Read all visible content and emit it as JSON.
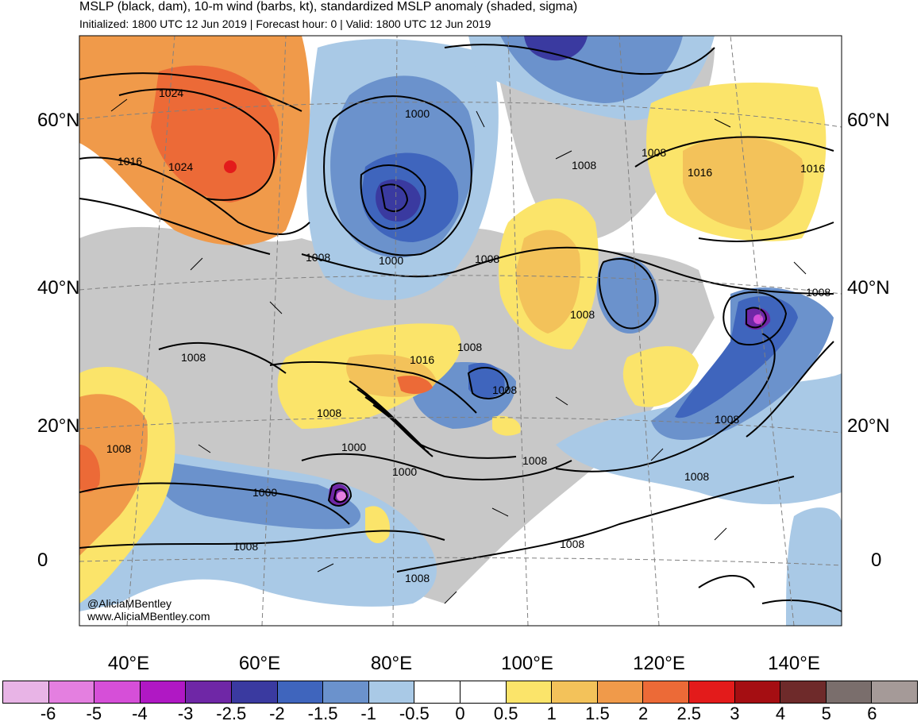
{
  "title": {
    "line1": "MSLP (black, dam), 10-m wind (barbs, kt), standardized MSLP anomaly (shaded, sigma)",
    "line2": "Initialized: 1800 UTC 12 Jun 2019 | Forecast hour: 0 | Valid: 1800 UTC 12 Jun 2019"
  },
  "lat_labels": [
    "60°N",
    "40°N",
    "20°N",
    "0"
  ],
  "lon_labels": [
    "40°E",
    "60°E",
    "80°E",
    "100°E",
    "120°E",
    "140°E"
  ],
  "contour_labels": [
    "1024",
    "1016",
    "1024",
    "1000",
    "1008",
    "1008",
    "1016",
    "1008",
    "1008",
    "1000",
    "1008",
    "1016",
    "1008",
    "1008",
    "1008",
    "1008",
    "1000",
    "1000",
    "1000",
    "1008",
    "1008",
    "1008",
    "1008",
    "1008",
    "1008",
    "1008",
    "1016",
    "1008"
  ],
  "credits": {
    "line1": "@AliciaMBentley",
    "line2": "www.AliciaMBentley.com"
  },
  "colorbar": {
    "colors": [
      "#e8b4e6",
      "#e47fe0",
      "#d64fd8",
      "#b018c4",
      "#6f27a6",
      "#3a3aa0",
      "#3f65bd",
      "#6b92cc",
      "#a9c9e6",
      "#ffffff",
      "#ffffff",
      "#fbe46a",
      "#f3c25a",
      "#f09a4a",
      "#ec6a37",
      "#e31b1b",
      "#a50e12",
      "#6e2a2a",
      "#7a6e6c",
      "#a59a98"
    ],
    "labels": [
      "-6",
      "-5",
      "-4",
      "-3",
      "-2.5",
      "-2",
      "-1.5",
      "-1",
      "-0.5",
      "0",
      "0.5",
      "1",
      "1.5",
      "2",
      "2.5",
      "3",
      "4",
      "5",
      "6"
    ]
  }
}
